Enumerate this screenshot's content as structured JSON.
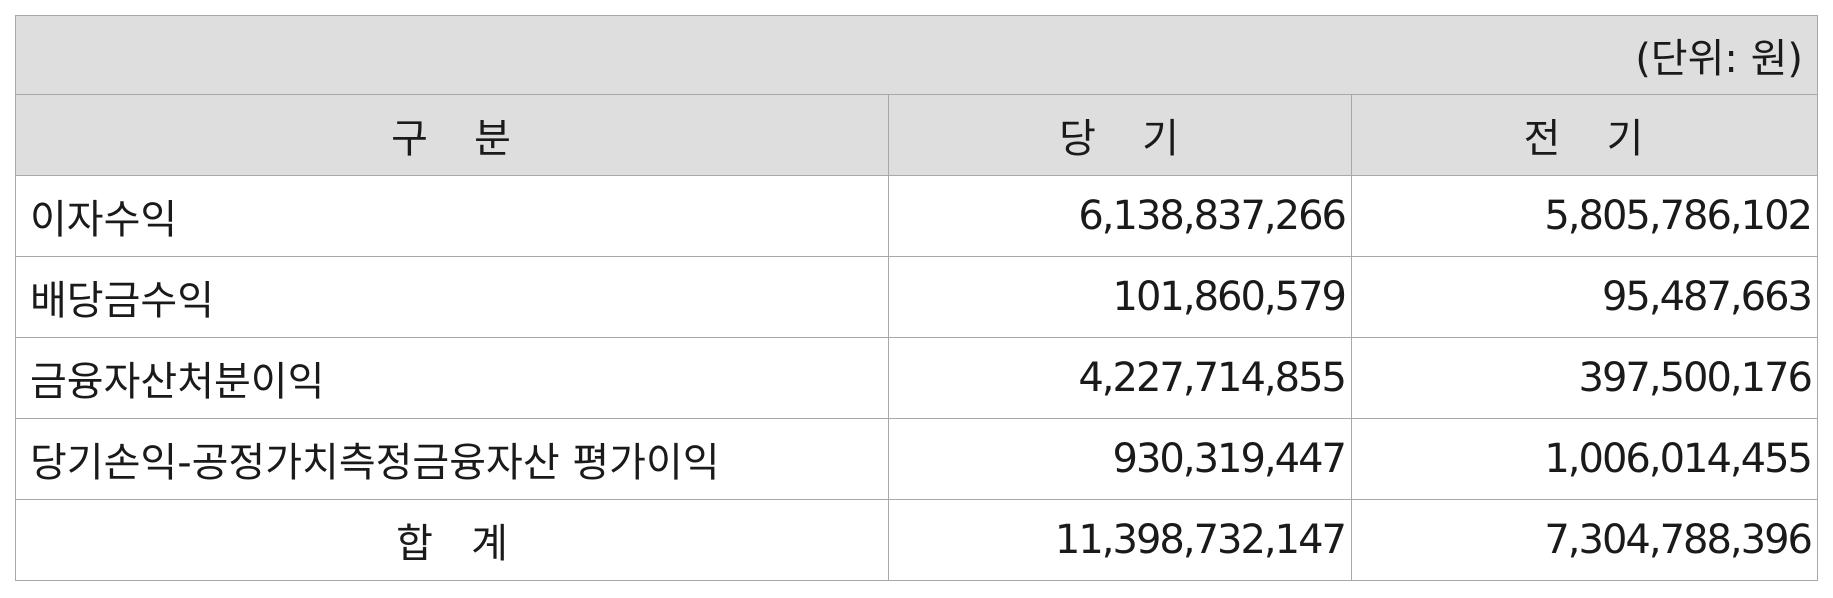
{
  "unit_label": "(단위: 원)",
  "headers": {
    "category": "구   분",
    "current": "당   기",
    "prior": "전   기"
  },
  "rows": [
    {
      "label": "이자수익",
      "current": "6,138,837,266",
      "prior": "5,805,786,102"
    },
    {
      "label": "배당금수익",
      "current": "101,860,579",
      "prior": "95,487,663"
    },
    {
      "label": "금융자산처분이익",
      "current": "4,227,714,855",
      "prior": "397,500,176"
    },
    {
      "label": "당기손익-공정가치측정금융자산 평가이익",
      "current": "930,319,447",
      "prior": "1,006,014,455"
    }
  ],
  "total": {
    "label": "합   계",
    "current": "11,398,732,147",
    "prior": "7,304,788,396"
  }
}
